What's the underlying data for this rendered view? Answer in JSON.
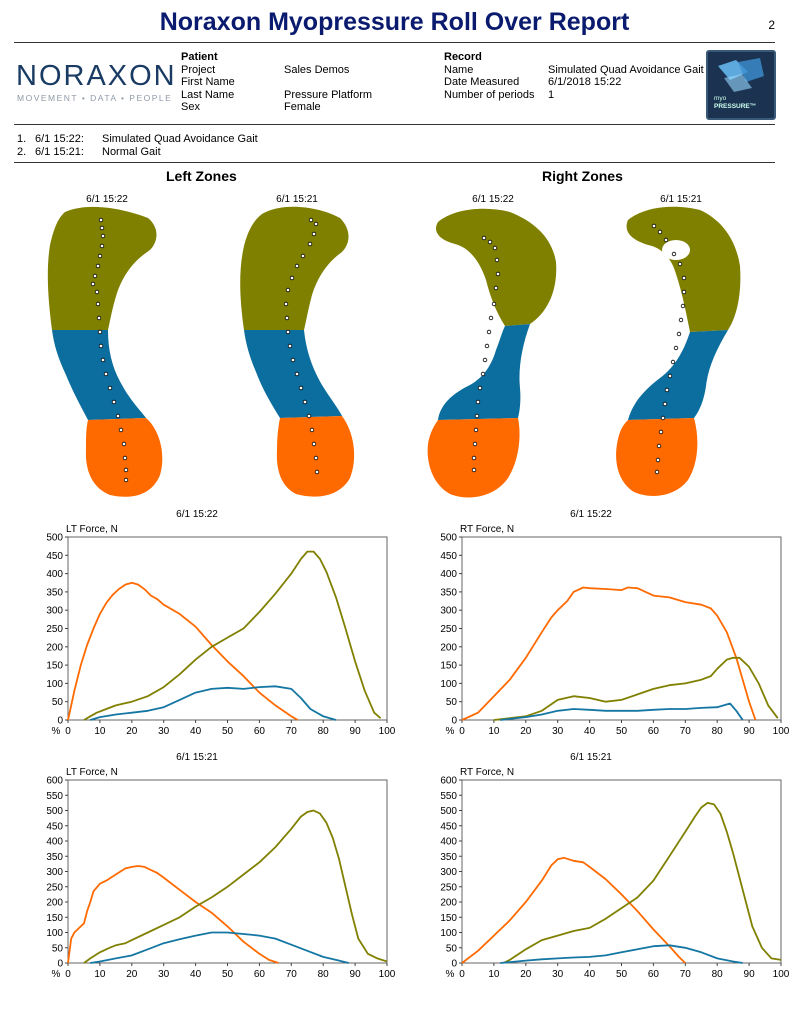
{
  "page": {
    "title": "Noraxon Myopressure Roll Over Report",
    "number": "2"
  },
  "logo": {
    "name": "NORAXON",
    "tagline": "MOVEMENT • DATA • PEOPLE"
  },
  "badge": {
    "line1": "myo",
    "line2": "PRESSURE™"
  },
  "patient": {
    "heading": "Patient",
    "fields": [
      {
        "label": "Project",
        "value": "Sales Demos"
      },
      {
        "label": "First Name",
        "value": ""
      },
      {
        "label": "Last Name",
        "value": "Pressure Platform"
      },
      {
        "label": "Sex",
        "value": "Female"
      }
    ]
  },
  "record": {
    "heading": "Record",
    "fields": [
      {
        "label": "Name",
        "value": "Simulated Quad Avoidance Gait"
      },
      {
        "label": "Date Measured",
        "value": "6/1/2018 15:22"
      },
      {
        "label": "Number of periods",
        "value": "1"
      }
    ]
  },
  "recordings": [
    {
      "num": "1.",
      "time": "6/1 15:22:",
      "name": "Simulated Quad Avoidance Gait"
    },
    {
      "num": "2.",
      "time": "6/1 15:21:",
      "name": "Normal Gait"
    }
  ],
  "zones": {
    "left_heading": "Left Zones",
    "right_heading": "Right Zones",
    "feet": [
      {
        "label": "6/1 15:22"
      },
      {
        "label": "6/1 15:21"
      },
      {
        "label": "6/1 15:22"
      },
      {
        "label": "6/1 15:21"
      }
    ],
    "colors": {
      "forefoot": "#808000",
      "midfoot": "#0b6e9e",
      "heel": "#ff6a00"
    }
  },
  "series_colors": {
    "heel": "#ff6a00",
    "forefoot": "#808000",
    "midfoot": "#1476a3"
  },
  "chart_data": [
    {
      "type": "line",
      "title": "6/1 15:22",
      "ylabel": "LT Force, N",
      "xlabel": "%",
      "xlim": [
        0,
        100
      ],
      "ylim": [
        0,
        500
      ],
      "xticks": [
        0,
        10,
        20,
        30,
        40,
        50,
        60,
        70,
        80,
        90,
        100
      ],
      "yticks": [
        0,
        50,
        100,
        150,
        200,
        250,
        300,
        350,
        400,
        450,
        500
      ],
      "series": [
        {
          "color": "#ff6a00",
          "x": [
            0,
            2,
            4,
            6,
            8,
            10,
            12,
            14,
            16,
            18,
            20,
            22,
            24,
            26,
            28,
            30,
            35,
            40,
            45,
            50,
            55,
            60,
            65,
            70,
            72
          ],
          "y": [
            0,
            80,
            150,
            205,
            250,
            290,
            320,
            342,
            358,
            370,
            375,
            370,
            357,
            340,
            330,
            315,
            290,
            255,
            205,
            160,
            120,
            75,
            40,
            10,
            0
          ]
        },
        {
          "color": "#808000",
          "x": [
            5,
            7,
            9,
            12,
            15,
            20,
            25,
            30,
            35,
            40,
            45,
            50,
            55,
            60,
            65,
            70,
            73,
            75,
            77,
            79,
            81,
            84,
            87,
            90,
            93,
            96,
            98
          ],
          "y": [
            0,
            10,
            20,
            30,
            40,
            50,
            65,
            90,
            125,
            165,
            200,
            225,
            250,
            295,
            345,
            400,
            440,
            460,
            460,
            440,
            405,
            335,
            250,
            160,
            80,
            20,
            5
          ]
        },
        {
          "color": "#1476a3",
          "x": [
            7,
            10,
            15,
            20,
            25,
            30,
            35,
            40,
            45,
            50,
            55,
            60,
            65,
            70,
            73,
            76,
            80,
            84
          ],
          "y": [
            0,
            8,
            15,
            20,
            25,
            35,
            55,
            75,
            85,
            88,
            85,
            90,
            92,
            85,
            60,
            30,
            10,
            0
          ]
        }
      ]
    },
    {
      "type": "line",
      "title": "6/1 15:22",
      "ylabel": "RT Force, N",
      "xlabel": "%",
      "xlim": [
        0,
        100
      ],
      "ylim": [
        0,
        500
      ],
      "xticks": [
        0,
        10,
        20,
        30,
        40,
        50,
        60,
        70,
        80,
        90,
        100
      ],
      "yticks": [
        0,
        50,
        100,
        150,
        200,
        250,
        300,
        350,
        400,
        450,
        500
      ],
      "series": [
        {
          "color": "#ff6a00",
          "x": [
            0,
            5,
            10,
            15,
            20,
            25,
            28,
            30,
            33,
            35,
            38,
            40,
            45,
            50,
            52,
            55,
            60,
            65,
            70,
            75,
            78,
            80,
            83,
            86,
            88,
            90,
            92
          ],
          "y": [
            0,
            20,
            65,
            110,
            170,
            240,
            280,
            300,
            325,
            350,
            362,
            360,
            358,
            355,
            362,
            360,
            340,
            335,
            322,
            315,
            305,
            285,
            240,
            170,
            110,
            50,
            0
          ]
        },
        {
          "color": "#808000",
          "x": [
            10,
            15,
            20,
            25,
            30,
            35,
            40,
            45,
            50,
            55,
            60,
            65,
            70,
            75,
            78,
            80,
            83,
            85,
            87,
            90,
            93,
            96,
            99
          ],
          "y": [
            0,
            5,
            10,
            25,
            55,
            65,
            60,
            50,
            55,
            70,
            85,
            95,
            100,
            110,
            120,
            140,
            165,
            170,
            170,
            145,
            100,
            40,
            5
          ]
        },
        {
          "color": "#1476a3",
          "x": [
            12,
            15,
            20,
            25,
            30,
            35,
            40,
            45,
            50,
            55,
            60,
            65,
            70,
            75,
            80,
            82,
            84,
            86,
            88
          ],
          "y": [
            0,
            3,
            8,
            15,
            25,
            30,
            28,
            25,
            25,
            25,
            28,
            30,
            30,
            33,
            35,
            40,
            45,
            25,
            0
          ]
        }
      ]
    },
    {
      "type": "line",
      "title": "6/1 15:21",
      "ylabel": "LT Force, N",
      "xlabel": "%",
      "xlim": [
        0,
        100
      ],
      "ylim": [
        0,
        600
      ],
      "xticks": [
        0,
        10,
        20,
        30,
        40,
        50,
        60,
        70,
        80,
        90,
        100
      ],
      "yticks": [
        0,
        50,
        100,
        150,
        200,
        250,
        300,
        350,
        400,
        450,
        500,
        550,
        600
      ],
      "series": [
        {
          "color": "#ff6a00",
          "x": [
            0,
            1,
            2,
            3,
            5,
            6,
            7,
            8,
            10,
            12,
            15,
            18,
            20,
            22,
            24,
            26,
            28,
            30,
            35,
            40,
            45,
            50,
            55,
            60,
            63,
            66
          ],
          "y": [
            0,
            80,
            100,
            110,
            130,
            170,
            200,
            235,
            260,
            270,
            290,
            310,
            315,
            318,
            315,
            305,
            295,
            280,
            240,
            200,
            165,
            120,
            70,
            30,
            10,
            0
          ]
        },
        {
          "color": "#808000",
          "x": [
            5,
            7,
            10,
            13,
            15,
            18,
            20,
            25,
            30,
            35,
            40,
            45,
            50,
            55,
            60,
            65,
            70,
            73,
            75,
            77,
            79,
            81,
            83,
            85,
            87,
            89,
            91,
            94,
            97,
            100
          ],
          "y": [
            0,
            15,
            35,
            50,
            58,
            65,
            75,
            100,
            125,
            150,
            185,
            215,
            250,
            290,
            330,
            380,
            440,
            480,
            495,
            500,
            490,
            460,
            410,
            340,
            250,
            160,
            80,
            30,
            15,
            5
          ]
        },
        {
          "color": "#1476a3",
          "x": [
            7,
            10,
            15,
            20,
            25,
            30,
            35,
            40,
            45,
            50,
            55,
            60,
            65,
            70,
            75,
            80,
            85,
            88
          ],
          "y": [
            0,
            5,
            15,
            25,
            45,
            65,
            78,
            90,
            100,
            100,
            95,
            90,
            80,
            60,
            40,
            20,
            8,
            0
          ]
        }
      ]
    },
    {
      "type": "line",
      "title": "6/1 15:21",
      "ylabel": "RT Force, N",
      "xlabel": "%",
      "xlim": [
        0,
        100
      ],
      "ylim": [
        0,
        600
      ],
      "xticks": [
        0,
        10,
        20,
        30,
        40,
        50,
        60,
        70,
        80,
        90,
        100
      ],
      "yticks": [
        0,
        50,
        100,
        150,
        200,
        250,
        300,
        350,
        400,
        450,
        500,
        550,
        600
      ],
      "series": [
        {
          "color": "#ff6a00",
          "x": [
            0,
            5,
            10,
            15,
            20,
            25,
            28,
            30,
            32,
            35,
            38,
            40,
            45,
            50,
            55,
            60,
            65,
            68,
            70
          ],
          "y": [
            0,
            40,
            90,
            140,
            200,
            270,
            320,
            340,
            345,
            335,
            330,
            315,
            275,
            225,
            170,
            110,
            55,
            20,
            0
          ]
        },
        {
          "color": "#808000",
          "x": [
            13,
            15,
            20,
            25,
            30,
            35,
            40,
            45,
            50,
            55,
            60,
            65,
            70,
            73,
            75,
            77,
            79,
            81,
            83,
            85,
            87,
            89,
            91,
            94,
            97,
            100
          ],
          "y": [
            0,
            10,
            45,
            75,
            90,
            105,
            115,
            145,
            180,
            215,
            270,
            350,
            430,
            480,
            510,
            525,
            520,
            490,
            430,
            360,
            280,
            200,
            120,
            50,
            15,
            10
          ]
        },
        {
          "color": "#1476a3",
          "x": [
            12,
            15,
            20,
            25,
            30,
            35,
            40,
            45,
            50,
            55,
            60,
            65,
            70,
            75,
            80,
            85,
            88
          ],
          "y": [
            0,
            3,
            8,
            12,
            15,
            18,
            20,
            25,
            35,
            45,
            55,
            58,
            50,
            35,
            15,
            5,
            0
          ]
        }
      ]
    }
  ]
}
